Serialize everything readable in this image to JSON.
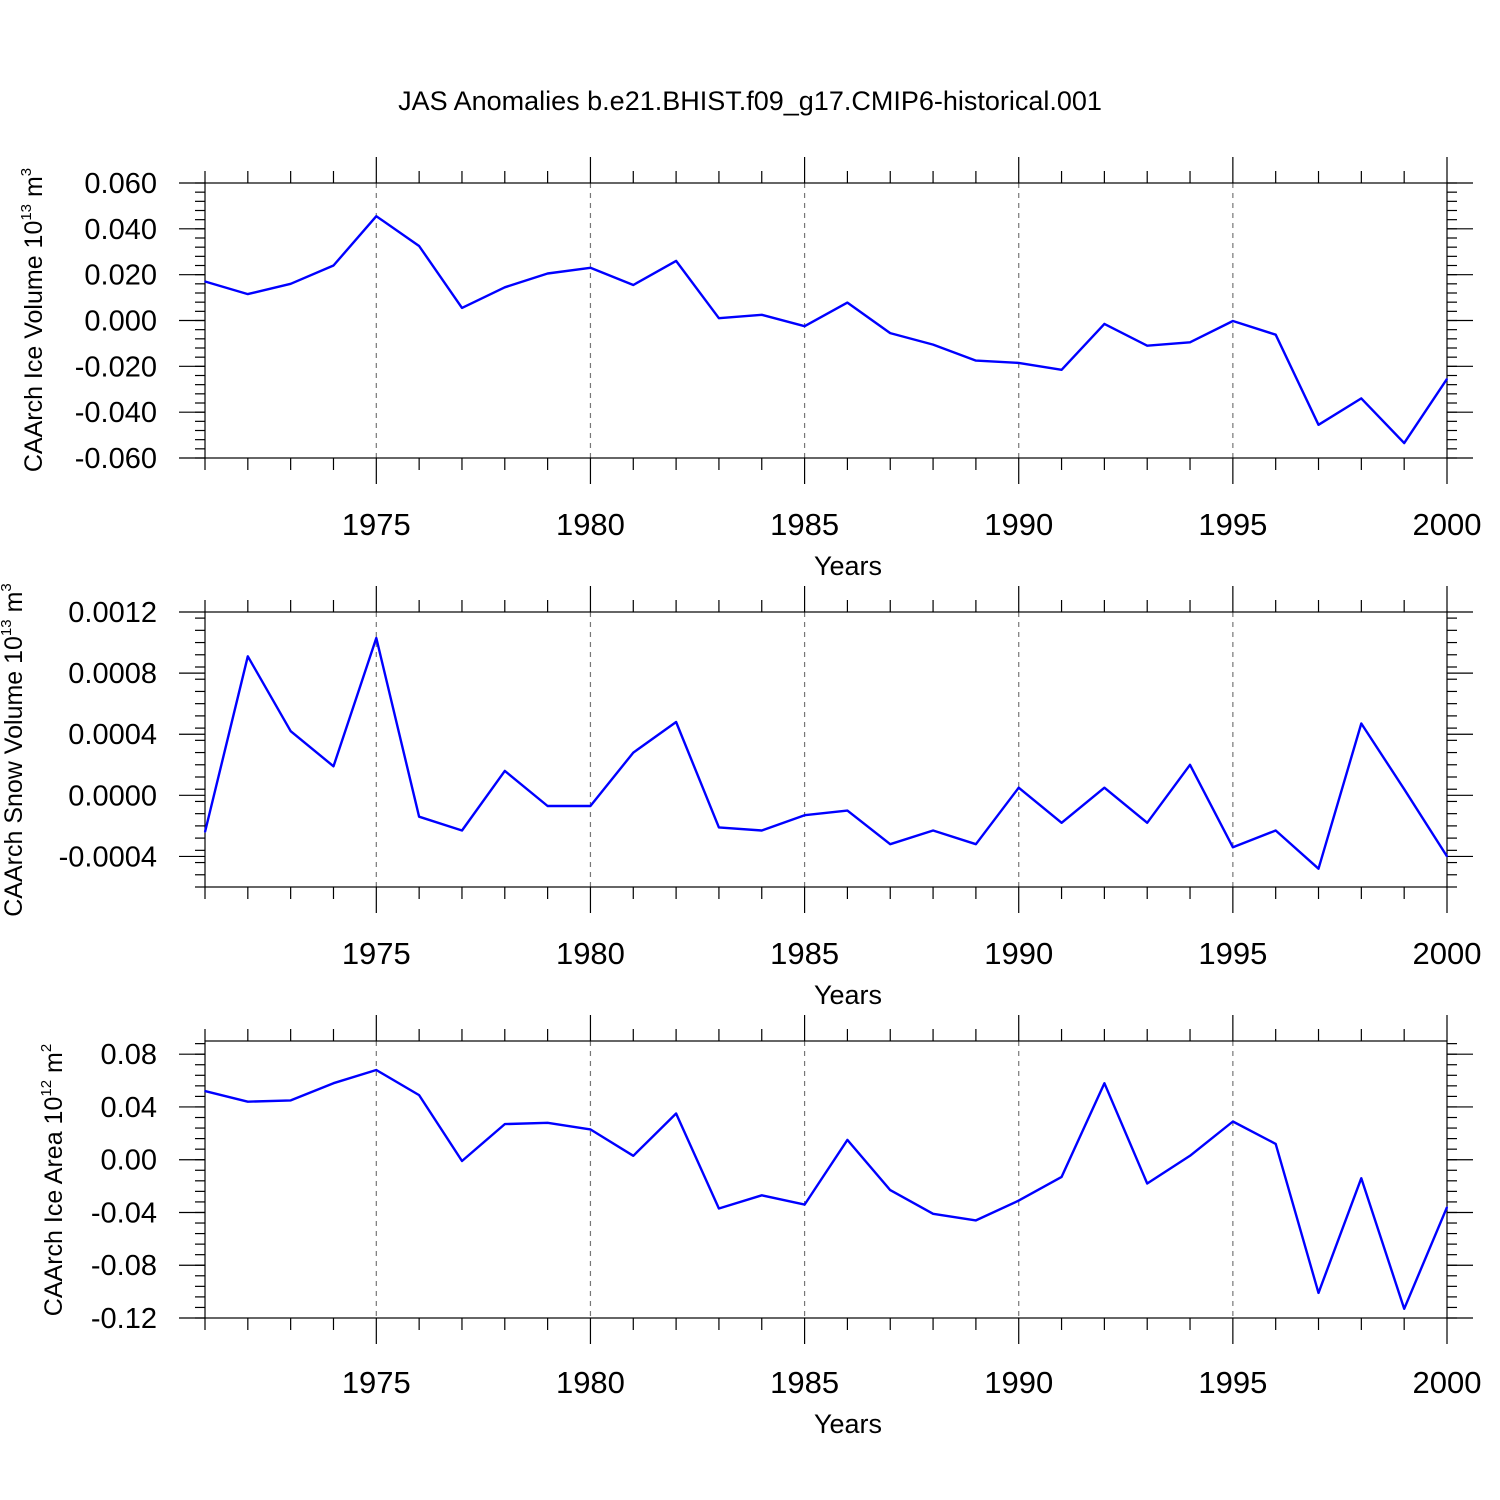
{
  "figure": {
    "title": "JAS Anomalies b.e21.BHIST.f09_g17.CMIP6-historical.001",
    "line_color": "#0000ff"
  },
  "chart_data": [
    {
      "type": "line",
      "ylabel": "CAArch Ice Volume 10",
      "ylabel_exponent": "13",
      "ylabel_unit": "m",
      "ylabel_unit_exponent": "3",
      "xlabel": "Years",
      "xlim": [
        1971,
        2000
      ],
      "ylim": [
        -0.06,
        0.06
      ],
      "yticks": [
        -0.06,
        -0.04,
        -0.02,
        0.0,
        0.02,
        0.04,
        0.06
      ],
      "ytick_labels": [
        "-0.060",
        "-0.040",
        "-0.020",
        "0.000",
        "0.020",
        "0.040",
        "0.060"
      ],
      "xticks": [
        1975,
        1980,
        1985,
        1990,
        1995,
        2000
      ],
      "xtick_labels": [
        "1975",
        "1980",
        "1985",
        "1990",
        "1995",
        "2000"
      ],
      "grid_x_dashed": [
        1975,
        1980,
        1985,
        1990,
        1995
      ],
      "x": [
        1971,
        1972,
        1973,
        1974,
        1975,
        1976,
        1977,
        1978,
        1979,
        1980,
        1981,
        1982,
        1983,
        1984,
        1985,
        1986,
        1987,
        1988,
        1989,
        1990,
        1991,
        1992,
        1993,
        1994,
        1995,
        1996,
        1997,
        1998,
        1999,
        2000
      ],
      "values": [
        0.017,
        0.0115,
        0.016,
        0.024,
        0.0455,
        0.0325,
        0.0055,
        0.0145,
        0.0205,
        0.023,
        0.0155,
        0.026,
        0.001,
        0.0025,
        -0.0025,
        0.0078,
        -0.0055,
        -0.0105,
        -0.0175,
        -0.0185,
        -0.0215,
        -0.0015,
        -0.011,
        -0.0095,
        -0.0002,
        -0.0062,
        -0.0455,
        -0.034,
        -0.0535,
        -0.0255
      ]
    },
    {
      "type": "line",
      "ylabel": "CAArch Snow Volume 10",
      "ylabel_exponent": "13",
      "ylabel_unit": "m",
      "ylabel_unit_exponent": "3",
      "xlabel": "Years",
      "xlim": [
        1971,
        2000
      ],
      "ylim": [
        -0.0006,
        0.0012
      ],
      "yticks": [
        -0.0004,
        0.0,
        0.0004,
        0.0008,
        0.0012
      ],
      "ytick_labels": [
        "-0.0004",
        "0.0000",
        "0.0004",
        "0.0008",
        "0.0012"
      ],
      "xticks": [
        1975,
        1980,
        1985,
        1990,
        1995,
        2000
      ],
      "xtick_labels": [
        "1975",
        "1980",
        "1985",
        "1990",
        "1995",
        "2000"
      ],
      "grid_x_dashed": [
        1975,
        1980,
        1985,
        1990,
        1995
      ],
      "x": [
        1971,
        1972,
        1973,
        1974,
        1975,
        1976,
        1977,
        1978,
        1979,
        1980,
        1981,
        1982,
        1983,
        1984,
        1985,
        1986,
        1987,
        1988,
        1989,
        1990,
        1991,
        1992,
        1993,
        1994,
        1995,
        1996,
        1997,
        1998,
        1999,
        2000
      ],
      "values": [
        -0.00024,
        0.00091,
        0.00042,
        0.00019,
        0.00103,
        -0.00014,
        -0.00023,
        0.00016,
        -7e-05,
        -7e-05,
        0.00028,
        0.00048,
        -0.00021,
        -0.00023,
        -0.00013,
        -0.0001,
        -0.00032,
        -0.00023,
        -0.00032,
        5e-05,
        -0.00018,
        5e-05,
        -0.00018,
        0.0002,
        -0.00034,
        -0.00023,
        -0.00048,
        0.00047,
        4e-05,
        -0.0004
      ]
    },
    {
      "type": "line",
      "ylabel": "CAArch Ice Area 10",
      "ylabel_exponent": "12",
      "ylabel_unit": "m",
      "ylabel_unit_exponent": "2",
      "xlabel": "Years",
      "xlim": [
        1971,
        2000
      ],
      "ylim": [
        -0.12,
        0.09
      ],
      "yticks": [
        -0.12,
        -0.08,
        -0.04,
        0.0,
        0.04,
        0.08
      ],
      "ytick_labels": [
        "-0.12",
        "-0.08",
        "-0.04",
        "0.00",
        "0.04",
        "0.08"
      ],
      "xticks": [
        1975,
        1980,
        1985,
        1990,
        1995,
        2000
      ],
      "xtick_labels": [
        "1975",
        "1980",
        "1985",
        "1990",
        "1995",
        "2000"
      ],
      "grid_x_dashed": [
        1975,
        1980,
        1985,
        1990,
        1995
      ],
      "x": [
        1971,
        1972,
        1973,
        1974,
        1975,
        1976,
        1977,
        1978,
        1979,
        1980,
        1981,
        1982,
        1983,
        1984,
        1985,
        1986,
        1987,
        1988,
        1989,
        1990,
        1991,
        1992,
        1993,
        1994,
        1995,
        1996,
        1997,
        1998,
        1999,
        2000
      ],
      "values": [
        0.052,
        0.044,
        0.045,
        0.058,
        0.068,
        0.049,
        -0.001,
        0.027,
        0.028,
        0.023,
        0.003,
        0.035,
        -0.037,
        -0.027,
        -0.034,
        0.015,
        -0.023,
        -0.041,
        -0.046,
        -0.031,
        -0.013,
        0.058,
        -0.018,
        0.003,
        0.029,
        0.012,
        -0.101,
        -0.014,
        -0.113,
        -0.036
      ]
    }
  ]
}
